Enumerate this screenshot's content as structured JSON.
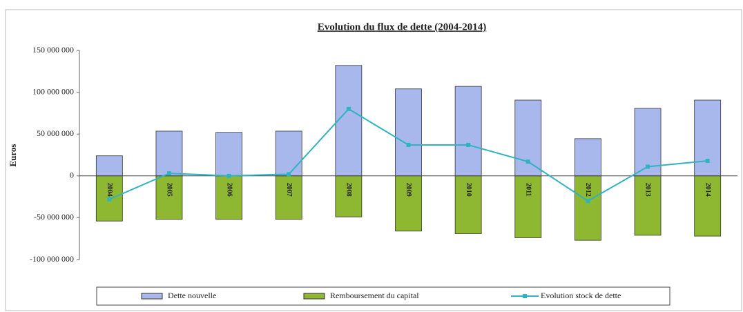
{
  "chart_data": {
    "type": "bar",
    "title": "Evolution du flux de dette (2004-2014)",
    "y_label": "Euros",
    "categories": [
      "2004",
      "2005",
      "2006",
      "2007",
      "2008",
      "2009",
      "2010",
      "2011",
      "2012",
      "2013",
      "2014"
    ],
    "series": [
      {
        "name": "Dette nouvelle",
        "type": "bar",
        "color": "#a9b8ec",
        "values": [
          24000000,
          53500000,
          52000000,
          53500000,
          132000000,
          104000000,
          107000000,
          90600000,
          44500000,
          80700000,
          90600000
        ]
      },
      {
        "name": "Remboursement du capital",
        "type": "bar",
        "color": "#8fb832",
        "values": [
          -54000000,
          -52000000,
          -52000000,
          -52000000,
          -49000000,
          -66000000,
          -69000000,
          -74000000,
          -77000000,
          -71000000,
          -72000000
        ]
      },
      {
        "name": "Evolution stock de dette",
        "type": "line",
        "color": "#2fb3c0",
        "values": [
          -28000000,
          3000000,
          0,
          2000000,
          80000000,
          37000000,
          37000000,
          17000000,
          -30000000,
          11000000,
          18000000
        ]
      }
    ],
    "ylim": [
      -100000000,
      150000000
    ],
    "yticks": [
      {
        "value": -100000000,
        "label": "-100 000 000"
      },
      {
        "value": -50000000,
        "label": "-50 000 000"
      },
      0,
      {
        "value": 50000000,
        "label": "50 000 000"
      },
      {
        "value": 100000000,
        "label": "100 000 000"
      },
      {
        "value": 150000000,
        "label": "150 000 000"
      }
    ],
    "grid": false,
    "legend": "bottom"
  }
}
